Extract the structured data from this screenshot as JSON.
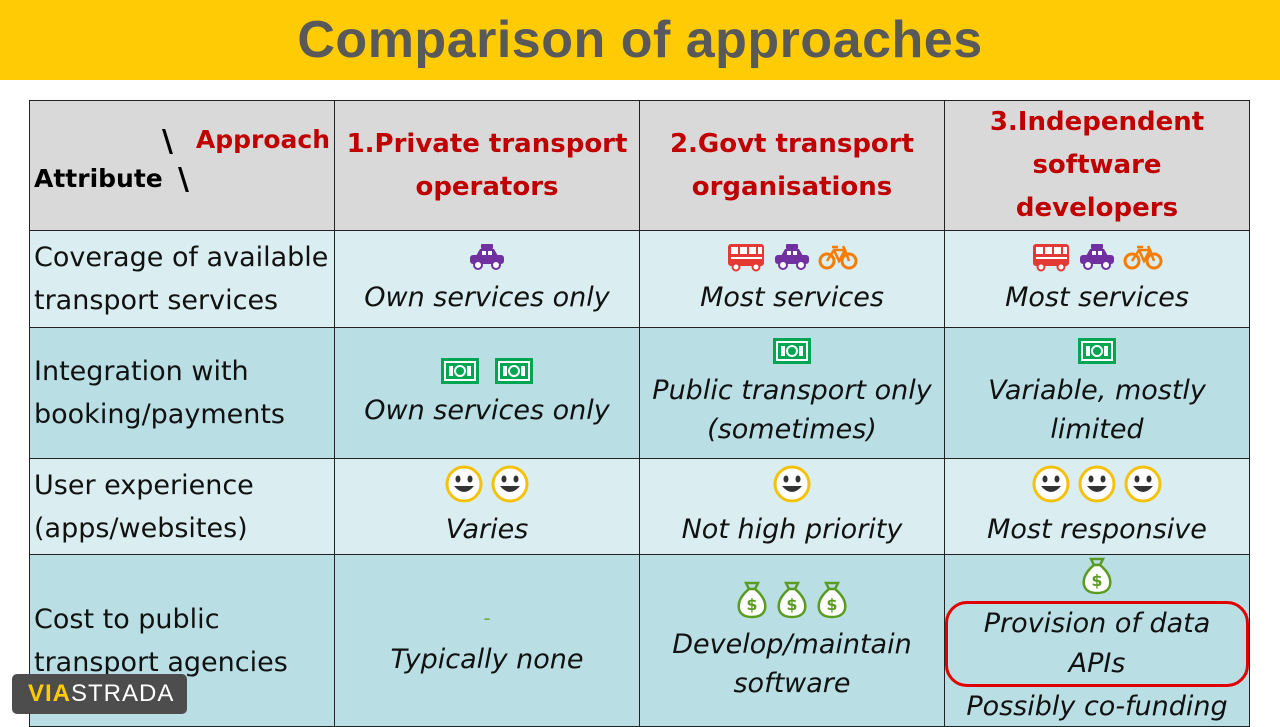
{
  "title": "Comparison of approaches",
  "header": {
    "corner_approach": "Approach",
    "corner_attribute": "Attribute",
    "corner_slash": "\\",
    "columns": [
      "1.Private transport operators",
      "2.Govt transport organisations",
      "3.Independent software developers"
    ]
  },
  "rows": [
    {
      "attribute": "Coverage of available transport services",
      "cells": [
        {
          "icons": [
            "taxi-icon"
          ],
          "text": "Own services only"
        },
        {
          "icons": [
            "bus-icon",
            "taxi-icon",
            "bicycle-icon"
          ],
          "text": "Most services"
        },
        {
          "icons": [
            "bus-icon",
            "taxi-icon",
            "bicycle-icon"
          ],
          "text": "Most services"
        }
      ]
    },
    {
      "attribute": "Integration with booking/payments",
      "cells": [
        {
          "icons": [
            "banknote-icon",
            "banknote-icon"
          ],
          "text": "Own services only"
        },
        {
          "icons": [
            "banknote-icon"
          ],
          "text": "Public transport only (sometimes)"
        },
        {
          "icons": [
            "banknote-icon"
          ],
          "text": "Variable, mostly limited"
        }
      ]
    },
    {
      "attribute": "User experience (apps/websites)",
      "cells": [
        {
          "icons": [
            "smiley-icon",
            "smiley-icon"
          ],
          "text": "Varies"
        },
        {
          "icons": [
            "smiley-icon"
          ],
          "text": "Not high priority"
        },
        {
          "icons": [
            "smiley-icon",
            "smiley-icon",
            "smiley-icon"
          ],
          "text": "Most responsive"
        }
      ]
    },
    {
      "attribute": "Cost to public transport agencies",
      "cells": [
        {
          "dash": "-",
          "text": "Typically none"
        },
        {
          "icons": [
            "money-bag-icon",
            "money-bag-icon",
            "money-bag-icon"
          ],
          "text": "Develop/maintain software"
        },
        {
          "icons": [
            "money-bag-icon"
          ],
          "highlight_text": "Provision of data APIs",
          "text": "Possibly co-funding"
        }
      ]
    }
  ],
  "logo": {
    "via": "VIA",
    "strada": "STRADA"
  },
  "colors": {
    "title_bar": "#FFCB05",
    "title_text": "#595959",
    "header_text": "#C00000",
    "row_light": "#DAEEF1",
    "row_dark": "#B9DFE4",
    "highlight": "#E00000",
    "taxi": "#7030A0",
    "bus": "#E53935",
    "bicycle": "#F57C00",
    "banknote": "#00A651",
    "smiley": "#F4C20D",
    "money_bag": "#5B9B22"
  }
}
